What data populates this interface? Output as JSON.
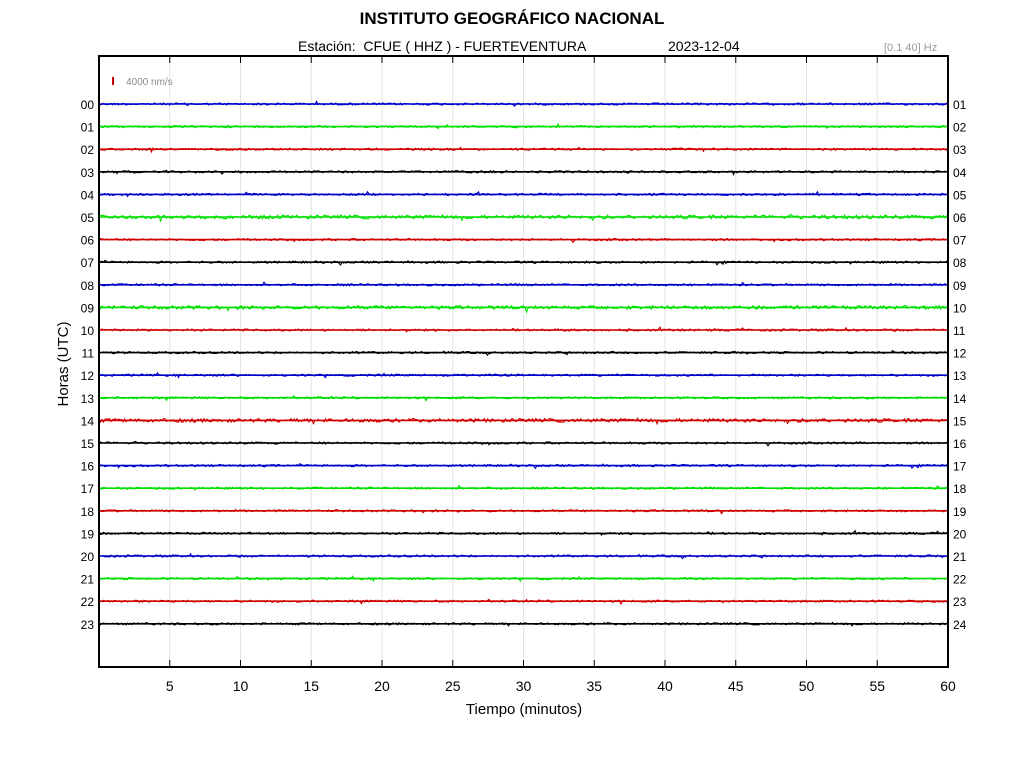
{
  "header": {
    "title": "INSTITUTO GEOGRÁFICO NACIONAL",
    "station": "Estación:  CFUE ( HHZ ) - FUERTEVENTURA",
    "date": "2023-12-04",
    "filter": "[0.1 40] Hz"
  },
  "chart_data": {
    "type": "line",
    "xlabel": "Tiempo (minutos)",
    "ylabel": "Horas (UTC)",
    "xlim": [
      0,
      60
    ],
    "x_ticks": [
      "5",
      "10",
      "15",
      "20",
      "25",
      "30",
      "35",
      "40",
      "45",
      "50",
      "55",
      "60"
    ],
    "hours_left": [
      "00",
      "01",
      "02",
      "03",
      "04",
      "05",
      "06",
      "07",
      "08",
      "09",
      "10",
      "11",
      "12",
      "13",
      "14",
      "15",
      "16",
      "17",
      "18",
      "19",
      "20",
      "21",
      "22",
      "23"
    ],
    "hours_right": [
      "01",
      "02",
      "03",
      "04",
      "05",
      "06",
      "07",
      "08",
      "09",
      "10",
      "11",
      "12",
      "13",
      "14",
      "15",
      "16",
      "17",
      "18",
      "19",
      "20",
      "21",
      "22",
      "23",
      "24"
    ],
    "scale_label": "4000 nm/s",
    "scale_color": "#cc0000",
    "grid": true,
    "trace_colors": [
      "#0000c8",
      "#00e000",
      "#d00000",
      "#000000"
    ]
  }
}
